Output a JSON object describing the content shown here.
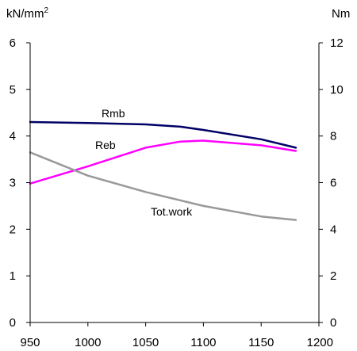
{
  "chart_data": {
    "type": "line",
    "left_axis": {
      "unit_base": "kN/mm",
      "unit_sup": "2",
      "ylim": [
        0,
        6
      ],
      "ticks": [
        0,
        1,
        2,
        3,
        4,
        5,
        6
      ],
      "tick_labels": [
        "0",
        "1",
        "2",
        "3",
        "4",
        "5",
        "6"
      ]
    },
    "right_axis": {
      "unit": "Nm",
      "ylim": [
        0,
        12
      ],
      "ticks": [
        0,
        2,
        4,
        6,
        8,
        10,
        12
      ],
      "tick_labels": [
        "0",
        "2",
        "4",
        "6",
        "8",
        "10",
        "12"
      ]
    },
    "x_axis": {
      "xlim": [
        950,
        1200
      ],
      "ticks": [
        950,
        1000,
        1050,
        1100,
        1150,
        1200
      ],
      "tick_labels": [
        "950",
        "1000",
        "1050",
        "1100",
        "1150",
        "1200"
      ]
    },
    "series": [
      {
        "name": "Rmb",
        "axis": "left",
        "color": "#000066",
        "x": [
          950,
          1000,
          1050,
          1080,
          1100,
          1150,
          1180
        ],
        "y": [
          4.3,
          4.28,
          4.25,
          4.2,
          4.13,
          3.93,
          3.75
        ]
      },
      {
        "name": "Reb",
        "axis": "left",
        "color": "#ff00ff",
        "x": [
          950,
          1000,
          1050,
          1080,
          1100,
          1150,
          1180
        ],
        "y": [
          2.98,
          3.35,
          3.75,
          3.88,
          3.9,
          3.8,
          3.68
        ]
      },
      {
        "name": "Tot.work",
        "axis": "right",
        "color": "#999999",
        "x": [
          950,
          1000,
          1050,
          1100,
          1150,
          1180
        ],
        "y": [
          7.3,
          6.3,
          5.6,
          5.0,
          4.55,
          4.4
        ]
      }
    ]
  }
}
